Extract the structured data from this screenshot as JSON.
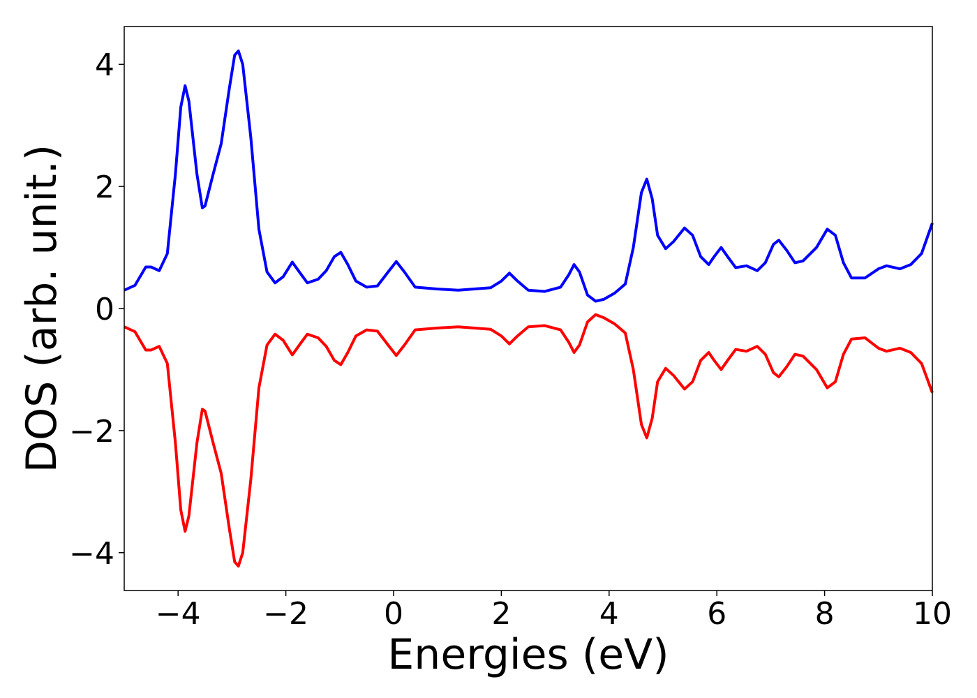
{
  "chart_data": {
    "type": "line",
    "xlabel": "Energies (eV)",
    "ylabel": "DOS (arb. unit.)",
    "xlim": [
      -5,
      10
    ],
    "ylim": [
      -4.62,
      4.62
    ],
    "xticks": [
      {
        "value": -4,
        "label": "−4"
      },
      {
        "value": -2,
        "label": "−2"
      },
      0,
      2,
      4,
      6,
      8,
      10
    ],
    "yticks": [
      {
        "value": -4,
        "label": "−4"
      },
      {
        "value": -2,
        "label": "−2"
      },
      0,
      2,
      4
    ],
    "x": [
      -5,
      -4.8,
      -4.6,
      -4.5,
      -4.35,
      -4.2,
      -4.05,
      -3.95,
      -3.87,
      -3.8,
      -3.65,
      -3.55,
      -3.5,
      -3.35,
      -3.2,
      -3.05,
      -2.95,
      -2.88,
      -2.8,
      -2.65,
      -2.5,
      -2.35,
      -2.2,
      -2.05,
      -1.88,
      -1.75,
      -1.6,
      -1.4,
      -1.25,
      -1.1,
      -0.98,
      -0.85,
      -0.7,
      -0.5,
      -0.3,
      -0.1,
      0.05,
      0.2,
      0.4,
      0.8,
      1.2,
      1.8,
      2.0,
      2.15,
      2.3,
      2.5,
      2.8,
      3.1,
      3.25,
      3.35,
      3.45,
      3.6,
      3.75,
      3.9,
      4.1,
      4.3,
      4.45,
      4.6,
      4.7,
      4.8,
      4.9,
      5.05,
      5.2,
      5.4,
      5.55,
      5.7,
      5.85,
      5.95,
      6.08,
      6.2,
      6.35,
      6.55,
      6.75,
      6.9,
      7.05,
      7.15,
      7.3,
      7.45,
      7.6,
      7.85,
      8.05,
      8.2,
      8.35,
      8.5,
      8.75,
      9.0,
      9.15,
      9.4,
      9.6,
      9.8,
      10
    ],
    "series": [
      {
        "color": "#0000ff",
        "values": [
          0.3,
          0.38,
          0.68,
          0.68,
          0.62,
          0.9,
          2.2,
          3.3,
          3.65,
          3.4,
          2.2,
          1.65,
          1.68,
          2.2,
          2.7,
          3.6,
          4.15,
          4.22,
          4.0,
          2.8,
          1.3,
          0.6,
          0.42,
          0.52,
          0.76,
          0.6,
          0.42,
          0.48,
          0.62,
          0.85,
          0.92,
          0.72,
          0.45,
          0.35,
          0.37,
          0.6,
          0.77,
          0.6,
          0.35,
          0.32,
          0.3,
          0.34,
          0.45,
          0.58,
          0.45,
          0.3,
          0.28,
          0.35,
          0.55,
          0.72,
          0.6,
          0.22,
          0.12,
          0.15,
          0.25,
          0.4,
          1.0,
          1.9,
          2.12,
          1.8,
          1.2,
          0.98,
          1.1,
          1.32,
          1.2,
          0.85,
          0.72,
          0.85,
          1.0,
          0.85,
          0.67,
          0.7,
          0.62,
          0.75,
          1.05,
          1.12,
          0.95,
          0.75,
          0.78,
          1.0,
          1.3,
          1.2,
          0.75,
          0.5,
          0.5,
          0.65,
          0.7,
          0.65,
          0.72,
          0.9,
          1.4
        ]
      },
      {
        "color": "#ff0000",
        "values": [
          -0.3,
          -0.38,
          -0.68,
          -0.68,
          -0.62,
          -0.9,
          -2.2,
          -3.3,
          -3.65,
          -3.4,
          -2.2,
          -1.65,
          -1.68,
          -2.2,
          -2.7,
          -3.6,
          -4.15,
          -4.22,
          -4.0,
          -2.8,
          -1.3,
          -0.6,
          -0.42,
          -0.52,
          -0.76,
          -0.6,
          -0.42,
          -0.48,
          -0.62,
          -0.85,
          -0.92,
          -0.72,
          -0.45,
          -0.35,
          -0.37,
          -0.6,
          -0.77,
          -0.6,
          -0.35,
          -0.32,
          -0.3,
          -0.34,
          -0.45,
          -0.58,
          -0.45,
          -0.3,
          -0.28,
          -0.35,
          -0.55,
          -0.72,
          -0.6,
          -0.22,
          -0.1,
          -0.15,
          -0.25,
          -0.4,
          -1.0,
          -1.9,
          -2.12,
          -1.8,
          -1.2,
          -0.98,
          -1.1,
          -1.32,
          -1.2,
          -0.85,
          -0.72,
          -0.85,
          -1.0,
          -0.85,
          -0.67,
          -0.7,
          -0.62,
          -0.75,
          -1.05,
          -1.12,
          -0.95,
          -0.75,
          -0.78,
          -1.0,
          -1.3,
          -1.2,
          -0.75,
          -0.5,
          -0.48,
          -0.65,
          -0.7,
          -0.65,
          -0.72,
          -0.9,
          -1.38
        ]
      }
    ]
  }
}
